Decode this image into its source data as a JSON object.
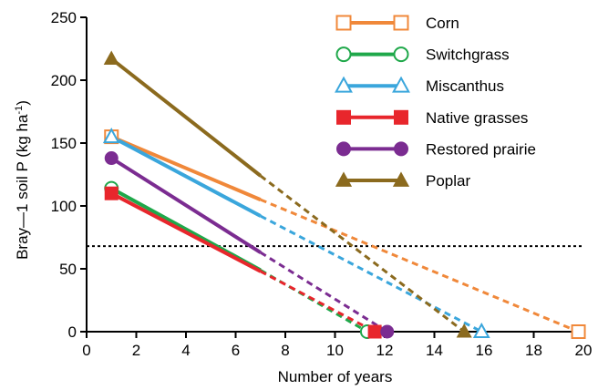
{
  "chart_data": {
    "type": "line",
    "title": "",
    "xlabel": "Number  of years",
    "ylabel_main": "Bray—1 soil P (kg ha",
    "ylabel_sup": "-1",
    "ylabel_close": ")",
    "xlim": [
      0,
      20
    ],
    "ylim": [
      0,
      250
    ],
    "xticks": [
      0,
      2,
      4,
      6,
      8,
      10,
      12,
      14,
      16,
      18,
      20
    ],
    "yticks": [
      0,
      50,
      100,
      150,
      200,
      250
    ],
    "grid": false,
    "legend_position": "top-right",
    "threshold": {
      "y": 68,
      "style": "dotted",
      "color": "#000000"
    },
    "series": [
      {
        "name": "Corn",
        "color": "#F0883A",
        "marker": "square",
        "filled": false,
        "points": [
          {
            "x": 1,
            "y": 155
          },
          {
            "x": 7,
            "y": 105
          },
          {
            "x": 19.8,
            "y": 0
          }
        ],
        "solid_until": 7
      },
      {
        "name": "Switchgrass",
        "color": "#1FA84A",
        "marker": "circle",
        "filled": false,
        "points": [
          {
            "x": 1,
            "y": 114
          },
          {
            "x": 7,
            "y": 49
          },
          {
            "x": 11.3,
            "y": 0
          }
        ],
        "solid_until": 7
      },
      {
        "name": "Miscanthus",
        "color": "#3AA6DC",
        "marker": "triangle",
        "filled": false,
        "points": [
          {
            "x": 1,
            "y": 155
          },
          {
            "x": 7,
            "y": 92
          },
          {
            "x": 15.9,
            "y": 0
          }
        ],
        "solid_until": 7
      },
      {
        "name": "Native grasses",
        "color": "#E8262C",
        "marker": "square",
        "filled": true,
        "points": [
          {
            "x": 1,
            "y": 110
          },
          {
            "x": 7,
            "y": 48
          },
          {
            "x": 11.6,
            "y": 0
          }
        ],
        "solid_until": 7
      },
      {
        "name": "Restored prairie",
        "color": "#7B2C91",
        "marker": "circle",
        "filled": true,
        "points": [
          {
            "x": 1,
            "y": 138
          },
          {
            "x": 7,
            "y": 63
          },
          {
            "x": 12.1,
            "y": 0
          }
        ],
        "solid_until": 7
      },
      {
        "name": "Poplar",
        "color": "#8B6A1E",
        "marker": "triangle",
        "filled": true,
        "points": [
          {
            "x": 1,
            "y": 217
          },
          {
            "x": 7,
            "y": 124
          },
          {
            "x": 15.2,
            "y": 0
          }
        ],
        "solid_until": 7
      }
    ]
  }
}
